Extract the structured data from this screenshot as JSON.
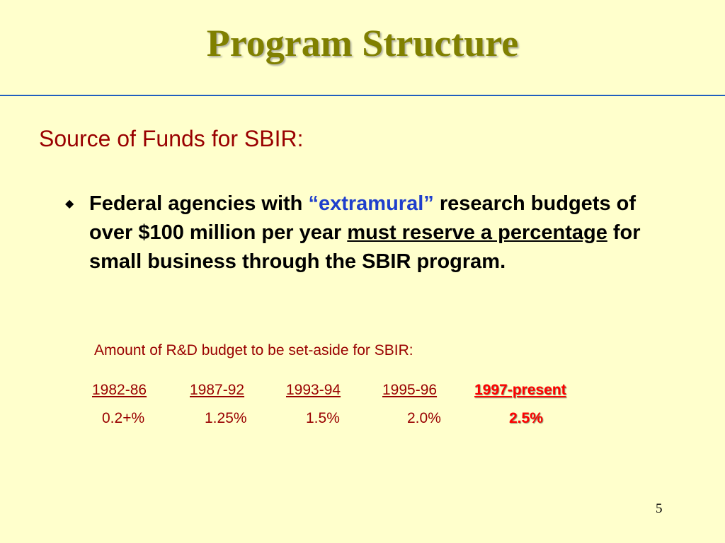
{
  "slide": {
    "title": "Program Structure",
    "subtitle": "Source of Funds for SBIR:",
    "bullet": {
      "part1": "Federal agencies with ",
      "quoted": "“extramural”",
      "part2": " research budgets of over $100 million per year ",
      "emphasis": "must reserve a percentage",
      "part3": " for small business through the SBIR program."
    },
    "table": {
      "caption": "Amount of R&D budget to be set-aside for SBIR:",
      "periods": [
        "1982-86",
        "1987-92",
        "1993-94",
        "1995-96",
        "1997-present"
      ],
      "percentages": [
        "0.2+%",
        "1.25%",
        "1.5%",
        "2.0%",
        "2.5%"
      ]
    },
    "page_number": "5",
    "colors": {
      "background": "#ffffcc",
      "title": "#808000",
      "heading": "#990000",
      "accent_blue": "#1f3fcc",
      "highlight_red": "#ff0000",
      "rule": "#1f5fbf"
    }
  }
}
